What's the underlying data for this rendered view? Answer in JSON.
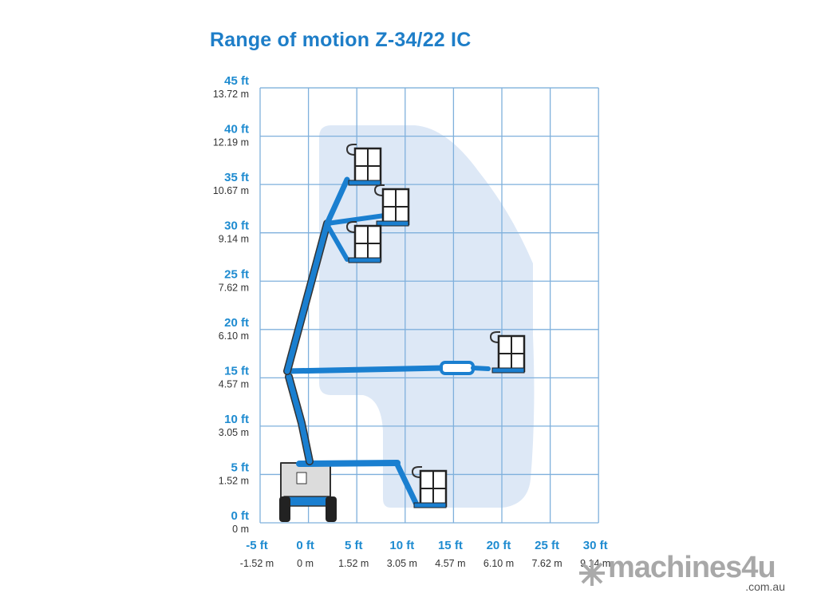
{
  "title": "Range of motion Z-34/22 IC",
  "y_axis": [
    {
      "ft": "45 ft",
      "m": "13.72 m"
    },
    {
      "ft": "40 ft",
      "m": "12.19 m"
    },
    {
      "ft": "35 ft",
      "m": "10.67 m"
    },
    {
      "ft": "30 ft",
      "m": "9.14 m"
    },
    {
      "ft": "25 ft",
      "m": "7.62 m"
    },
    {
      "ft": "20 ft",
      "m": "6.10 m"
    },
    {
      "ft": "15 ft",
      "m": "4.57 m"
    },
    {
      "ft": "10 ft",
      "m": "3.05 m"
    },
    {
      "ft": "5 ft",
      "m": "1.52 m"
    },
    {
      "ft": "0 ft",
      "m": "0 m"
    }
  ],
  "x_axis": [
    {
      "ft": "-5 ft",
      "m": "-1.52 m"
    },
    {
      "ft": "0 ft",
      "m": "0 m"
    },
    {
      "ft": "5 ft",
      "m": "1.52 m"
    },
    {
      "ft": "10 ft",
      "m": "3.05 m"
    },
    {
      "ft": "15 ft",
      "m": "4.57 m"
    },
    {
      "ft": "20 ft",
      "m": "6.10 m"
    },
    {
      "ft": "25 ft",
      "m": "7.62 m"
    },
    {
      "ft": "30 ft",
      "m": "9.14 m"
    }
  ],
  "colors": {
    "accent": "#1e8bd0",
    "grid": "#7fb0dc",
    "envelope": "#dde8f6",
    "machine": "#1a7fd0"
  },
  "watermark": {
    "brand": "machines4u",
    "domain": ".com.au"
  }
}
